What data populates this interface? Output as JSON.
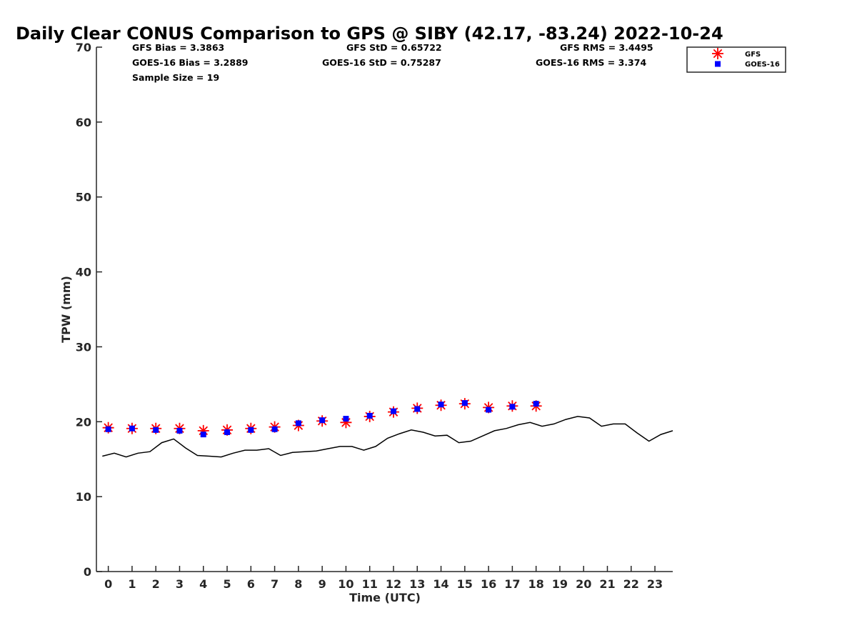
{
  "chart_data": {
    "type": "scatter",
    "title": "Daily Clear CONUS Comparison to GPS @ SIBY (42.17, -83.24) 2022-10-24",
    "xlabel": "Time (UTC)",
    "ylabel": "TPW (mm)",
    "xlim": [
      -0.5,
      23.75
    ],
    "ylim": [
      0,
      70
    ],
    "x_ticks": [
      "0",
      "1",
      "2",
      "3",
      "4",
      "5",
      "6",
      "7",
      "8",
      "9",
      "10",
      "11",
      "12",
      "13",
      "14",
      "15",
      "16",
      "17",
      "18",
      "19",
      "20",
      "21",
      "22",
      "23"
    ],
    "y_ticks": [
      "0",
      "10",
      "20",
      "30",
      "40",
      "50",
      "60",
      "70"
    ],
    "grid": false,
    "legend_position": "top-right",
    "colors": {
      "gfs": "#ff0000",
      "goes": "#0000ff",
      "gps": "#000000",
      "axis": "#262626"
    },
    "stats": {
      "gfs_bias": "GFS Bias = 3.3863",
      "goes_bias": "GOES-16 Bias = 3.2889",
      "sample_size": "Sample Size = 19",
      "gfs_std": "GFS StD = 0.65722",
      "goes_std": "GOES-16 StD = 0.75287",
      "gfs_rms": "GFS RMS = 3.4495",
      "goes_rms": "GOES-16 RMS = 3.374"
    },
    "series": [
      {
        "name": "GFS",
        "marker": "asterisk",
        "x": [
          0,
          1,
          2,
          3,
          4,
          5,
          6,
          7,
          8,
          9,
          10,
          11,
          12,
          13,
          14,
          15,
          16,
          17,
          18
        ],
        "values": [
          19.2,
          19.1,
          19.1,
          19.1,
          18.8,
          18.9,
          19.1,
          19.3,
          19.5,
          20.1,
          19.9,
          20.7,
          21.3,
          21.8,
          22.2,
          22.4,
          21.9,
          22.1,
          22.1
        ]
      },
      {
        "name": "GOES-16",
        "marker": "square",
        "x": [
          0,
          1,
          2,
          3,
          4,
          5,
          6,
          7,
          8,
          9,
          10,
          11,
          12,
          13,
          14,
          15,
          16,
          17,
          18
        ],
        "values": [
          19.0,
          19.1,
          18.9,
          18.8,
          18.3,
          18.6,
          18.9,
          19.0,
          19.8,
          20.2,
          20.4,
          20.8,
          21.4,
          21.7,
          22.3,
          22.5,
          21.6,
          22.0,
          22.4
        ]
      },
      {
        "marker": "line",
        "x": [
          -0.25,
          0.25,
          0.75,
          1.25,
          1.75,
          2.25,
          2.75,
          3.25,
          3.75,
          4.25,
          4.75,
          5.25,
          5.75,
          6.25,
          6.75,
          7.25,
          7.75,
          8.25,
          8.75,
          9.25,
          9.75,
          10.25,
          10.75,
          11.25,
          11.75,
          12.25,
          12.75,
          13.25,
          13.75,
          14.25,
          14.75,
          15.25,
          15.75,
          16.25,
          16.75,
          17.25,
          17.75,
          18.25,
          18.75,
          19.25,
          19.75,
          20.25,
          20.75,
          21.25,
          21.75,
          22.25,
          22.75,
          23.25,
          23.75
        ],
        "values": [
          15.4,
          15.8,
          15.3,
          15.8,
          16.0,
          17.2,
          17.7,
          16.5,
          15.5,
          15.4,
          15.3,
          15.8,
          16.2,
          16.2,
          16.4,
          15.5,
          15.9,
          16.0,
          16.1,
          16.4,
          16.7,
          16.7,
          16.2,
          16.7,
          17.8,
          18.4,
          18.9,
          18.6,
          18.1,
          18.2,
          17.2,
          17.4,
          18.1,
          18.8,
          19.1,
          19.6,
          19.9,
          19.4,
          19.7,
          20.3,
          20.7,
          20.5,
          19.4,
          19.7,
          19.7,
          18.5,
          17.4,
          18.3,
          18.8
        ]
      }
    ]
  }
}
